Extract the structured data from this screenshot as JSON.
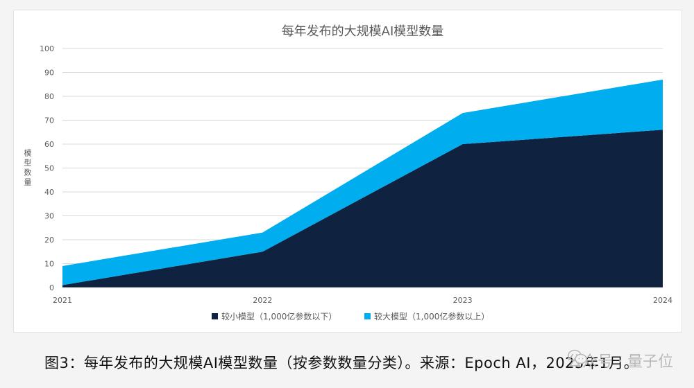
{
  "chart_data": {
    "type": "area",
    "stacked": true,
    "title": "每年发布的大规模AI模型数量",
    "ylabel": "模型数量",
    "xlabel": "",
    "x": [
      "2021",
      "2022",
      "2023",
      "2024"
    ],
    "ylim": [
      0,
      100
    ],
    "yticks": [
      0,
      10,
      20,
      30,
      40,
      50,
      60,
      70,
      80,
      90,
      100
    ],
    "grid": true,
    "legend_position": "bottom",
    "series": [
      {
        "name": "较小模型（1,000亿参数以下）",
        "values": [
          1,
          15,
          60,
          66
        ],
        "color": "#0f2341"
      },
      {
        "name": "较大模型（1,000亿参数以上）",
        "values": [
          8,
          8,
          13,
          21
        ],
        "color": "#00adef"
      }
    ]
  },
  "caption": "图3：每年发布的大规模AI模型数量（按参数数量分类）。来源：Epoch AI，2025年1月。",
  "watermark": {
    "icon": "wechat-icon",
    "text": "公众号 · 量子位"
  }
}
